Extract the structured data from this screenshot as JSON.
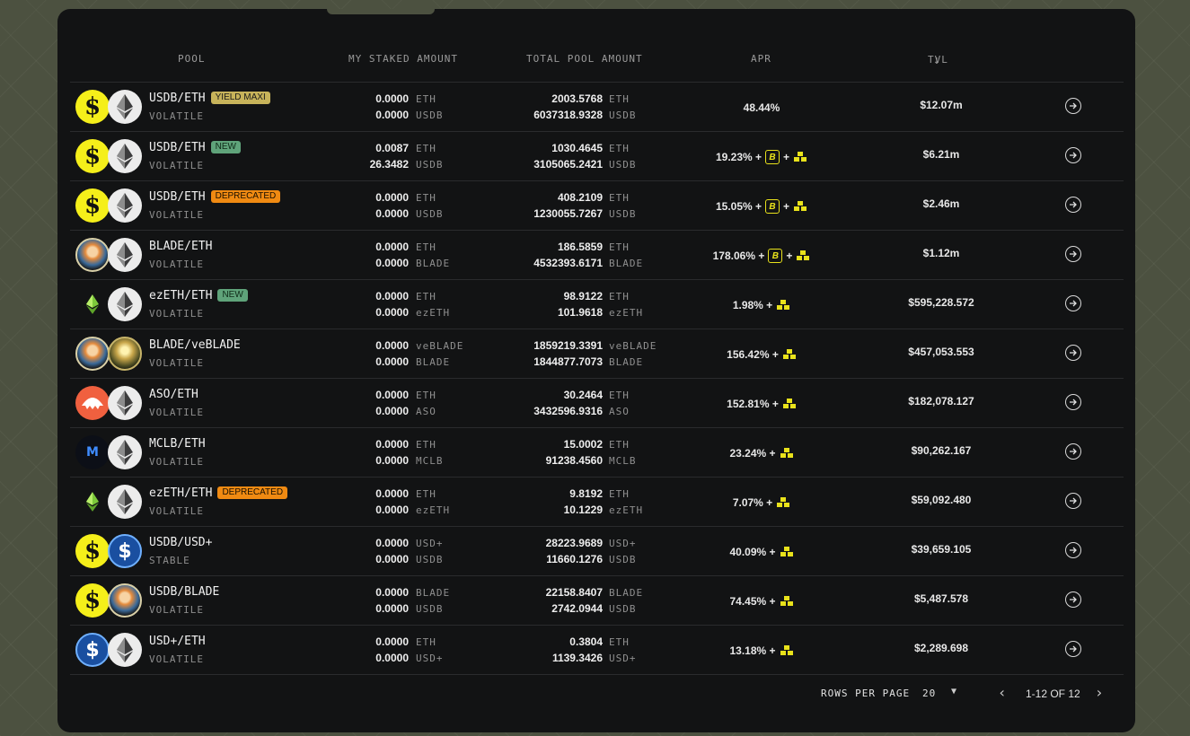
{
  "headers": {
    "pool": "POOL",
    "staked": "MY STAKED AMOUNT",
    "total": "TOTAL POOL AMOUNT",
    "apr": "APR",
    "tvl": "TVL"
  },
  "rows": [
    {
      "name": "USDB/ETH",
      "badge": "YIELD MAXI",
      "badge_type": "yield",
      "type": "VOLATILE",
      "icon1": "usdb",
      "icon2": "eth",
      "staked1": "0.0000",
      "staked1_unit": "ETH",
      "staked2": "0.0000",
      "staked2_unit": "USDB",
      "total1": "2003.5768",
      "total1_unit": "ETH",
      "total2": "6037318.9328",
      "total2_unit": "USDB",
      "apr": "48.44%",
      "apr_blast": false,
      "apr_gold": false,
      "tvl": "$12.07m"
    },
    {
      "name": "USDB/ETH",
      "badge": "NEW",
      "badge_type": "new",
      "type": "VOLATILE",
      "icon1": "usdb",
      "icon2": "eth",
      "staked1": "0.0087",
      "staked1_unit": "ETH",
      "staked2": "26.3482",
      "staked2_unit": "USDB",
      "total1": "1030.4645",
      "total1_unit": "ETH",
      "total2": "3105065.2421",
      "total2_unit": "USDB",
      "apr": "19.23% +",
      "apr_blast": true,
      "apr_gold": true,
      "tvl": "$6.21m"
    },
    {
      "name": "USDB/ETH",
      "badge": "DEPRECATED",
      "badge_type": "dep",
      "type": "VOLATILE",
      "icon1": "usdb",
      "icon2": "eth",
      "staked1": "0.0000",
      "staked1_unit": "ETH",
      "staked2": "0.0000",
      "staked2_unit": "USDB",
      "total1": "408.2109",
      "total1_unit": "ETH",
      "total2": "1230055.7267",
      "total2_unit": "USDB",
      "apr": "15.05% +",
      "apr_blast": true,
      "apr_gold": true,
      "tvl": "$2.46m"
    },
    {
      "name": "BLADE/ETH",
      "badge": "",
      "badge_type": "",
      "type": "VOLATILE",
      "icon1": "blade",
      "icon2": "eth",
      "staked1": "0.0000",
      "staked1_unit": "ETH",
      "staked2": "0.0000",
      "staked2_unit": "BLADE",
      "total1": "186.5859",
      "total1_unit": "ETH",
      "total2": "4532393.6171",
      "total2_unit": "BLADE",
      "apr": "178.06% +",
      "apr_blast": true,
      "apr_gold": true,
      "tvl": "$1.12m"
    },
    {
      "name": "ezETH/ETH",
      "badge": "NEW",
      "badge_type": "new",
      "type": "VOLATILE",
      "icon1": "ezeth",
      "icon2": "eth",
      "staked1": "0.0000",
      "staked1_unit": "ETH",
      "staked2": "0.0000",
      "staked2_unit": "ezETH",
      "total1": "98.9122",
      "total1_unit": "ETH",
      "total2": "101.9618",
      "total2_unit": "ezETH",
      "apr": "1.98% +",
      "apr_blast": false,
      "apr_gold": true,
      "tvl": "$595,228.572"
    },
    {
      "name": "BLADE/veBLADE",
      "badge": "",
      "badge_type": "",
      "type": "VOLATILE",
      "icon1": "blade",
      "icon2": "veblade",
      "staked1": "0.0000",
      "staked1_unit": "veBLADE",
      "staked2": "0.0000",
      "staked2_unit": "BLADE",
      "total1": "1859219.3391",
      "total1_unit": "veBLADE",
      "total2": "1844877.7073",
      "total2_unit": "BLADE",
      "apr": "156.42% +",
      "apr_blast": false,
      "apr_gold": true,
      "tvl": "$457,053.553"
    },
    {
      "name": "ASO/ETH",
      "badge": "",
      "badge_type": "",
      "type": "VOLATILE",
      "icon1": "aso",
      "icon2": "eth",
      "staked1": "0.0000",
      "staked1_unit": "ETH",
      "staked2": "0.0000",
      "staked2_unit": "ASO",
      "total1": "30.2464",
      "total1_unit": "ETH",
      "total2": "3432596.9316",
      "total2_unit": "ASO",
      "apr": "152.81% +",
      "apr_blast": false,
      "apr_gold": true,
      "tvl": "$182,078.127"
    },
    {
      "name": "MCLB/ETH",
      "badge": "",
      "badge_type": "",
      "type": "VOLATILE",
      "icon1": "mclb",
      "icon2": "eth",
      "staked1": "0.0000",
      "staked1_unit": "ETH",
      "staked2": "0.0000",
      "staked2_unit": "MCLB",
      "total1": "15.0002",
      "total1_unit": "ETH",
      "total2": "91238.4560",
      "total2_unit": "MCLB",
      "apr": "23.24% +",
      "apr_blast": false,
      "apr_gold": true,
      "tvl": "$90,262.167"
    },
    {
      "name": "ezETH/ETH",
      "badge": "DEPRECATED",
      "badge_type": "dep",
      "type": "VOLATILE",
      "icon1": "ezeth",
      "icon2": "eth",
      "staked1": "0.0000",
      "staked1_unit": "ETH",
      "staked2": "0.0000",
      "staked2_unit": "ezETH",
      "total1": "9.8192",
      "total1_unit": "ETH",
      "total2": "10.1229",
      "total2_unit": "ezETH",
      "apr": "7.07% +",
      "apr_blast": false,
      "apr_gold": true,
      "tvl": "$59,092.480"
    },
    {
      "name": "USDB/USD+",
      "badge": "",
      "badge_type": "",
      "type": "STABLE",
      "icon1": "usdb",
      "icon2": "usdp",
      "staked1": "0.0000",
      "staked1_unit": "USD+",
      "staked2": "0.0000",
      "staked2_unit": "USDB",
      "total1": "28223.9689",
      "total1_unit": "USD+",
      "total2": "11660.1276",
      "total2_unit": "USDB",
      "apr": "40.09% +",
      "apr_blast": false,
      "apr_gold": true,
      "tvl": "$39,659.105"
    },
    {
      "name": "USDB/BLADE",
      "badge": "",
      "badge_type": "",
      "type": "VOLATILE",
      "icon1": "usdb",
      "icon2": "blade",
      "staked1": "0.0000",
      "staked1_unit": "BLADE",
      "staked2": "0.0000",
      "staked2_unit": "USDB",
      "total1": "22158.8407",
      "total1_unit": "BLADE",
      "total2": "2742.0944",
      "total2_unit": "USDB",
      "apr": "74.45% +",
      "apr_blast": false,
      "apr_gold": true,
      "tvl": "$5,487.578"
    },
    {
      "name": "USD+/ETH",
      "badge": "",
      "badge_type": "",
      "type": "VOLATILE",
      "icon1": "usdp",
      "icon2": "eth",
      "staked1": "0.0000",
      "staked1_unit": "ETH",
      "staked2": "0.0000",
      "staked2_unit": "USD+",
      "total1": "0.3804",
      "total1_unit": "ETH",
      "total2": "1139.3426",
      "total2_unit": "USD+",
      "apr": "13.18% +",
      "apr_blast": false,
      "apr_gold": true,
      "tvl": "$2,289.698"
    }
  ],
  "footer": {
    "rows_per_page_label": "ROWS PER PAGE",
    "rows_per_page_value": "20",
    "page_info": "1-12 OF 12"
  },
  "colors": {
    "accent_yellow": "#f5ef1a",
    "badge_new": "#5fa37a",
    "badge_deprecated": "#f08a12",
    "badge_yield": "#c7b35a"
  }
}
